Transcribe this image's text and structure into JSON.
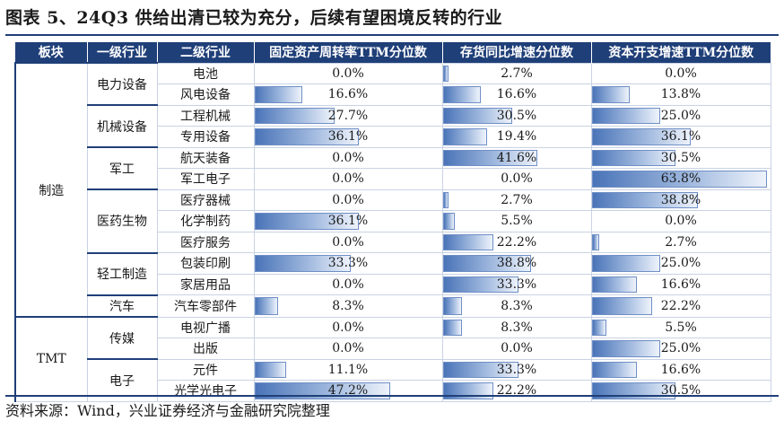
{
  "title": "图表 5、24Q3 供给出清已较为充分，后续有望困境反转的行业",
  "columns": [
    "板块",
    "一级行业",
    "二级行业",
    "固定资产周转率TTM分位数",
    "存货同比增速分位数",
    "资本开支增速TTM分位数"
  ],
  "sectors": [
    {
      "name": "制造",
      "industries": [
        {
          "name": "电力设备",
          "subs": [
            {
              "name": "电池",
              "v": [
                "0.0%",
                "2.7%",
                "0.0%"
              ],
              "n": [
                0.0,
                2.7,
                0.0
              ]
            },
            {
              "name": "风电设备",
              "v": [
                "16.6%",
                "16.6%",
                "13.8%"
              ],
              "n": [
                16.6,
                16.6,
                13.8
              ]
            }
          ]
        },
        {
          "name": "机械设备",
          "subs": [
            {
              "name": "工程机械",
              "v": [
                "27.7%",
                "30.5%",
                "25.0%"
              ],
              "n": [
                27.7,
                30.5,
                25.0
              ]
            },
            {
              "name": "专用设备",
              "v": [
                "36.1%",
                "19.4%",
                "36.1%"
              ],
              "n": [
                36.1,
                19.4,
                36.1
              ]
            }
          ]
        },
        {
          "name": "军工",
          "subs": [
            {
              "name": "航天装备",
              "v": [
                "0.0%",
                "41.6%",
                "30.5%"
              ],
              "n": [
                0.0,
                41.6,
                30.5
              ]
            },
            {
              "name": "军工电子",
              "v": [
                "0.0%",
                "0.0%",
                "63.8%"
              ],
              "n": [
                0.0,
                0.0,
                63.8
              ]
            }
          ]
        },
        {
          "name": "医药生物",
          "subs": [
            {
              "name": "医疗器械",
              "v": [
                "0.0%",
                "2.7%",
                "38.8%"
              ],
              "n": [
                0.0,
                2.7,
                38.8
              ]
            },
            {
              "name": "化学制药",
              "v": [
                "36.1%",
                "5.5%",
                "0.0%"
              ],
              "n": [
                36.1,
                5.5,
                0.0
              ]
            },
            {
              "name": "医疗服务",
              "v": [
                "0.0%",
                "22.2%",
                "2.7%"
              ],
              "n": [
                0.0,
                22.2,
                2.7
              ]
            }
          ]
        },
        {
          "name": "轻工制造",
          "subs": [
            {
              "name": "包装印刷",
              "v": [
                "33.3%",
                "38.8%",
                "25.0%"
              ],
              "n": [
                33.3,
                38.8,
                25.0
              ]
            },
            {
              "name": "家居用品",
              "v": [
                "0.0%",
                "33.3%",
                "16.6%"
              ],
              "n": [
                0.0,
                33.3,
                16.6
              ]
            }
          ]
        },
        {
          "name": "汽车",
          "subs": [
            {
              "name": "汽车零部件",
              "v": [
                "8.3%",
                "8.3%",
                "22.2%"
              ],
              "n": [
                8.3,
                8.3,
                22.2
              ]
            }
          ]
        }
      ]
    },
    {
      "name": "TMT",
      "industries": [
        {
          "name": "传媒",
          "subs": [
            {
              "name": "电视广播",
              "v": [
                "0.0%",
                "8.3%",
                "5.5%"
              ],
              "n": [
                0.0,
                8.3,
                5.5
              ]
            },
            {
              "name": "出版",
              "v": [
                "0.0%",
                "0.0%",
                "25.0%"
              ],
              "n": [
                0.0,
                0.0,
                25.0
              ]
            }
          ]
        },
        {
          "name": "电子",
          "subs": [
            {
              "name": "元件",
              "v": [
                "11.1%",
                "33.3%",
                "16.6%"
              ],
              "n": [
                11.1,
                33.3,
                16.6
              ]
            },
            {
              "name": "光学光电子",
              "v": [
                "47.2%",
                "22.2%",
                "30.5%"
              ],
              "n": [
                47.2,
                22.2,
                30.5
              ]
            }
          ]
        }
      ]
    }
  ],
  "source": "资料来源：Wind，兴业证券经济与金融研究院整理"
}
